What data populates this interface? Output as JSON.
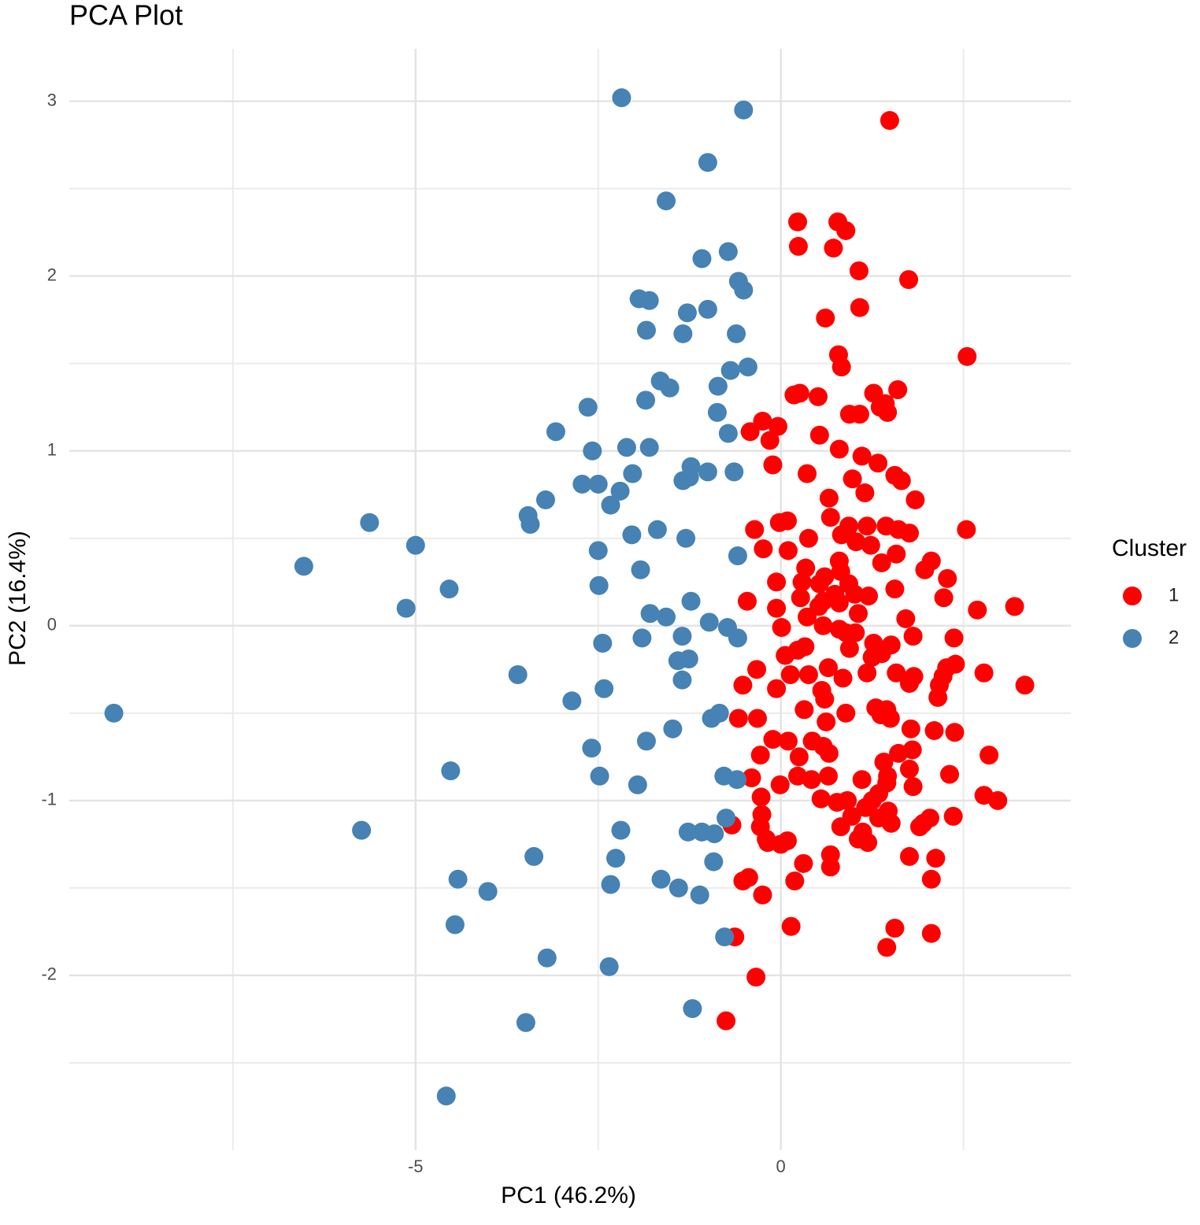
{
  "chart_data": {
    "type": "scatter",
    "title": "PCA Plot",
    "x_label": "PC1 (46.2%)",
    "y_label": "PC2 (16.4%)",
    "xlim": [
      -9.74,
      3.97
    ],
    "ylim": [
      -3.0,
      3.3
    ],
    "xticks": [
      -5,
      0
    ],
    "yticks": [
      3,
      2,
      1,
      0,
      -1,
      -2
    ],
    "xminor": [
      -7.5,
      -2.5,
      2.5
    ],
    "yminor": [
      2.5,
      1.5,
      0.5,
      -0.5,
      -1.5,
      -2.5
    ],
    "grid": true,
    "legend_title": "Cluster",
    "legend_position": "right",
    "series": [
      {
        "name": "1",
        "color": "#ff0000",
        "x": [
          1.49,
          0.23,
          0.78,
          0.89,
          0.24,
          0.72,
          1.07,
          1.75,
          1.08,
          0.61,
          2.55,
          0.79,
          0.83,
          1.6,
          1.27,
          0.18,
          0.26,
          0.51,
          1.43,
          1.36,
          1.46,
          0.94,
          1.08,
          -0.25,
          -0.04,
          -0.42,
          0.53,
          -0.15,
          0.8,
          1.11,
          1.33,
          -0.11,
          0.36,
          1.56,
          1.65,
          0.98,
          1.15,
          1.84,
          0.66,
          0.68,
          0.09,
          -0.02,
          -0.36,
          2.54,
          0.93,
          1.18,
          1.44,
          1.61,
          1.76,
          0.38,
          0.83,
          1.03,
          1.23,
          -0.24,
          0.1,
          1.58,
          0.8,
          2.06,
          1.38,
          0.34,
          0.6,
          0.82,
          1.97,
          2.28,
          -0.06,
          0.29,
          0.53,
          0.93,
          1.56,
          0.74,
          1.01,
          1.2,
          0.27,
          0.58,
          -0.46,
          2.23,
          0.8,
          3.2,
          2.69,
          0.52,
          -0.06,
          1.06,
          0.36,
          1.71,
          0.58,
          0.01,
          0.8,
          0.89,
          1.02,
          2.37,
          1.81,
          1.27,
          1.51,
          0.33,
          0.23,
          0.94,
          1.38,
          0.06,
          1.25,
          2.39,
          2.27,
          -0.33,
          0.65,
          1.58,
          1.18,
          2.78,
          0.38,
          0.13,
          2.22,
          1.82,
          0.85,
          1.76,
          -0.52,
          2.17,
          3.34,
          -0.06,
          0.56,
          0.6,
          2.15,
          0.32,
          1.3,
          0.89,
          1.45,
          1.37,
          1.5,
          -0.58,
          -0.32,
          0.62,
          1.78,
          2.1,
          2.38,
          -0.11,
          0.1,
          0.43,
          0.58,
          1.8,
          1.61,
          0.66,
          2.85,
          -0.28,
          0.25,
          1.41,
          1.76,
          2.31,
          1.46,
          0.23,
          0.42,
          0.65,
          -0.4,
          1.11,
          1.45,
          1.81,
          -0.01,
          1.34,
          2.78,
          2.97,
          -0.27,
          0.55,
          0.91,
          0.77,
          1.25,
          1.16,
          1.47,
          -0.26,
          0.97,
          2.04,
          2.36,
          1.34,
          0.82,
          -0.67,
          1.95,
          1.51,
          -0.28,
          1.12,
          1.9,
          -0.2,
          1.06,
          0.09,
          1.19,
          -0.18,
          0.0,
          0.68,
          1.76,
          2.12,
          0.31,
          0.68,
          -0.44,
          -0.52,
          2.06,
          0.19,
          -0.25,
          0.14,
          1.56,
          -0.63,
          2.06,
          1.45,
          -0.34,
          -0.75
        ],
        "y": [
          2.89,
          2.31,
          2.31,
          2.26,
          2.17,
          2.16,
          2.03,
          1.98,
          1.82,
          1.76,
          1.54,
          1.55,
          1.48,
          1.35,
          1.33,
          1.32,
          1.33,
          1.31,
          1.27,
          1.25,
          1.22,
          1.21,
          1.21,
          1.17,
          1.14,
          1.11,
          1.09,
          1.06,
          1.01,
          0.97,
          0.93,
          0.92,
          0.87,
          0.86,
          0.83,
          0.84,
          0.76,
          0.72,
          0.73,
          0.62,
          0.6,
          0.59,
          0.55,
          0.55,
          0.57,
          0.57,
          0.57,
          0.55,
          0.53,
          0.5,
          0.52,
          0.48,
          0.46,
          0.44,
          0.43,
          0.41,
          0.37,
          0.37,
          0.36,
          0.33,
          0.28,
          0.31,
          0.32,
          0.27,
          0.25,
          0.25,
          0.24,
          0.24,
          0.21,
          0.18,
          0.18,
          0.17,
          0.16,
          0.14,
          0.14,
          0.16,
          0.13,
          0.11,
          0.09,
          0.11,
          0.1,
          0.07,
          0.05,
          0.04,
          0.0,
          -0.01,
          -0.02,
          -0.04,
          -0.04,
          -0.07,
          -0.06,
          -0.1,
          -0.11,
          -0.12,
          -0.14,
          -0.13,
          -0.16,
          -0.17,
          -0.18,
          -0.22,
          -0.24,
          -0.25,
          -0.24,
          -0.27,
          -0.27,
          -0.27,
          -0.28,
          -0.28,
          -0.29,
          -0.29,
          -0.3,
          -0.33,
          -0.34,
          -0.34,
          -0.34,
          -0.36,
          -0.37,
          -0.42,
          -0.41,
          -0.48,
          -0.47,
          -0.5,
          -0.48,
          -0.51,
          -0.53,
          -0.53,
          -0.53,
          -0.55,
          -0.59,
          -0.6,
          -0.61,
          -0.65,
          -0.66,
          -0.66,
          -0.69,
          -0.71,
          -0.73,
          -0.73,
          -0.74,
          -0.74,
          -0.75,
          -0.78,
          -0.82,
          -0.85,
          -0.86,
          -0.86,
          -0.88,
          -0.86,
          -0.87,
          -0.88,
          -0.9,
          -0.92,
          -0.91,
          -0.96,
          -0.97,
          -1.0,
          -0.98,
          -0.99,
          -1.0,
          -1.01,
          -1.0,
          -1.04,
          -1.06,
          -1.08,
          -1.09,
          -1.1,
          -1.09,
          -1.1,
          -1.15,
          -1.14,
          -1.13,
          -1.13,
          -1.15,
          -1.18,
          -1.15,
          -1.22,
          -1.22,
          -1.23,
          -1.24,
          -1.24,
          -1.25,
          -1.31,
          -1.32,
          -1.33,
          -1.36,
          -1.38,
          -1.44,
          -1.46,
          -1.45,
          -1.46,
          -1.54,
          -1.72,
          -1.73,
          -1.78,
          -1.76,
          -1.84,
          -2.01,
          -2.26
        ]
      },
      {
        "name": "2",
        "color": "#4682b4",
        "x": [
          -2.18,
          -0.51,
          -1.0,
          -1.57,
          -0.72,
          -1.08,
          -0.58,
          -0.51,
          -1.94,
          -1.8,
          -1.28,
          -1.0,
          -1.84,
          -1.34,
          -0.61,
          -0.69,
          -0.45,
          -1.65,
          -1.52,
          -0.86,
          -1.85,
          -2.64,
          -0.87,
          -3.08,
          -0.72,
          -2.58,
          -2.11,
          -1.8,
          -1.23,
          -1.0,
          -0.64,
          -2.03,
          -2.72,
          -2.5,
          -1.34,
          -1.25,
          -2.2,
          -3.22,
          -2.33,
          -3.46,
          -3.43,
          -5.63,
          -2.04,
          -1.69,
          -1.3,
          -5.0,
          -2.5,
          -0.59,
          -6.53,
          -1.92,
          -4.54,
          -2.49,
          -1.23,
          -5.13,
          -1.79,
          -1.57,
          -0.98,
          -0.73,
          -1.35,
          -1.9,
          -0.59,
          -2.44,
          -1.41,
          -1.26,
          -1.35,
          -3.6,
          -2.42,
          -2.86,
          -9.13,
          -0.84,
          -0.95,
          -1.48,
          -1.84,
          -2.59,
          -4.52,
          -2.48,
          -0.78,
          -0.6,
          -1.96,
          -0.75,
          -5.74,
          -2.19,
          -1.27,
          -1.08,
          -0.91,
          -3.38,
          -2.26,
          -0.92,
          -4.42,
          -1.64,
          -4.01,
          -2.33,
          -1.4,
          -1.11,
          -4.46,
          -0.77,
          -3.2,
          -2.35,
          -1.21,
          -3.49,
          -4.58
        ],
        "y": [
          3.02,
          2.95,
          2.65,
          2.43,
          2.14,
          2.1,
          1.97,
          1.92,
          1.87,
          1.86,
          1.79,
          1.81,
          1.69,
          1.67,
          1.67,
          1.46,
          1.48,
          1.4,
          1.36,
          1.37,
          1.29,
          1.25,
          1.22,
          1.11,
          1.1,
          1.0,
          1.02,
          1.02,
          0.91,
          0.88,
          0.88,
          0.87,
          0.81,
          0.81,
          0.83,
          0.85,
          0.77,
          0.72,
          0.69,
          0.63,
          0.58,
          0.59,
          0.52,
          0.55,
          0.5,
          0.46,
          0.43,
          0.4,
          0.34,
          0.32,
          0.21,
          0.23,
          0.14,
          0.1,
          0.07,
          0.05,
          0.02,
          -0.01,
          -0.06,
          -0.07,
          -0.07,
          -0.1,
          -0.2,
          -0.19,
          -0.31,
          -0.28,
          -0.36,
          -0.43,
          -0.5,
          -0.5,
          -0.53,
          -0.59,
          -0.66,
          -0.7,
          -0.83,
          -0.86,
          -0.86,
          -0.88,
          -0.91,
          -1.1,
          -1.17,
          -1.17,
          -1.18,
          -1.18,
          -1.19,
          -1.32,
          -1.33,
          -1.35,
          -1.45,
          -1.45,
          -1.52,
          -1.48,
          -1.5,
          -1.54,
          -1.71,
          -1.78,
          -1.9,
          -1.95,
          -2.19,
          -2.27,
          -2.69
        ]
      }
    ]
  }
}
